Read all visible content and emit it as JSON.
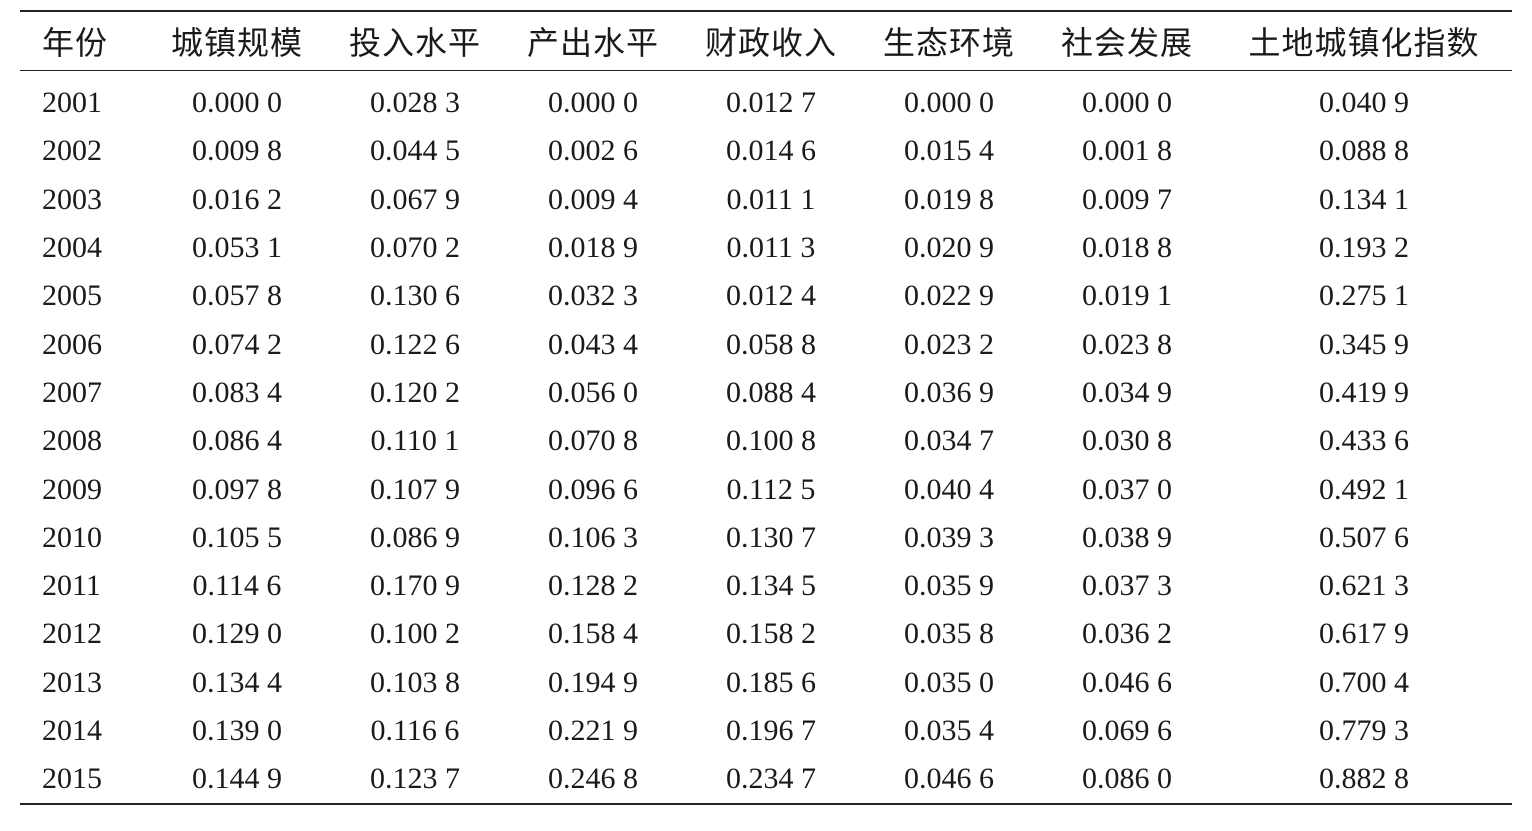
{
  "table": {
    "headers": [
      "年份",
      "城镇规模",
      "投入水平",
      "产出水平",
      "财政收入",
      "生态环境",
      "社会发展",
      "土地城镇化指数"
    ],
    "rows": [
      [
        "2001",
        "0.000 0",
        "0.028 3",
        "0.000 0",
        "0.012 7",
        "0.000 0",
        "0.000 0",
        "0.040 9"
      ],
      [
        "2002",
        "0.009 8",
        "0.044 5",
        "0.002 6",
        "0.014 6",
        "0.015 4",
        "0.001 8",
        "0.088 8"
      ],
      [
        "2003",
        "0.016 2",
        "0.067 9",
        "0.009 4",
        "0.011 1",
        "0.019 8",
        "0.009 7",
        "0.134 1"
      ],
      [
        "2004",
        "0.053 1",
        "0.070 2",
        "0.018 9",
        "0.011 3",
        "0.020 9",
        "0.018 8",
        "0.193 2"
      ],
      [
        "2005",
        "0.057 8",
        "0.130 6",
        "0.032 3",
        "0.012 4",
        "0.022 9",
        "0.019 1",
        "0.275 1"
      ],
      [
        "2006",
        "0.074 2",
        "0.122 6",
        "0.043 4",
        "0.058 8",
        "0.023 2",
        "0.023 8",
        "0.345 9"
      ],
      [
        "2007",
        "0.083 4",
        "0.120 2",
        "0.056 0",
        "0.088 4",
        "0.036 9",
        "0.034 9",
        "0.419 9"
      ],
      [
        "2008",
        "0.086 4",
        "0.110 1",
        "0.070 8",
        "0.100 8",
        "0.034 7",
        "0.030 8",
        "0.433 6"
      ],
      [
        "2009",
        "0.097 8",
        "0.107 9",
        "0.096 6",
        "0.112 5",
        "0.040 4",
        "0.037 0",
        "0.492 1"
      ],
      [
        "2010",
        "0.105 5",
        "0.086 9",
        "0.106 3",
        "0.130 7",
        "0.039 3",
        "0.038 9",
        "0.507 6"
      ],
      [
        "2011",
        "0.114 6",
        "0.170 9",
        "0.128 2",
        "0.134 5",
        "0.035 9",
        "0.037 3",
        "0.621 3"
      ],
      [
        "2012",
        "0.129 0",
        "0.100 2",
        "0.158 4",
        "0.158 2",
        "0.035 8",
        "0.036 2",
        "0.617 9"
      ],
      [
        "2013",
        "0.134 4",
        "0.103 8",
        "0.194 9",
        "0.185 6",
        "0.035 0",
        "0.046 6",
        "0.700 4"
      ],
      [
        "2014",
        "0.139 0",
        "0.116 6",
        "0.221 9",
        "0.196 7",
        "0.035 4",
        "0.069 6",
        "0.779 3"
      ],
      [
        "2015",
        "0.144 9",
        "0.123 7",
        "0.246 8",
        "0.234 7",
        "0.046 6",
        "0.086 0",
        "0.882 8"
      ]
    ]
  }
}
